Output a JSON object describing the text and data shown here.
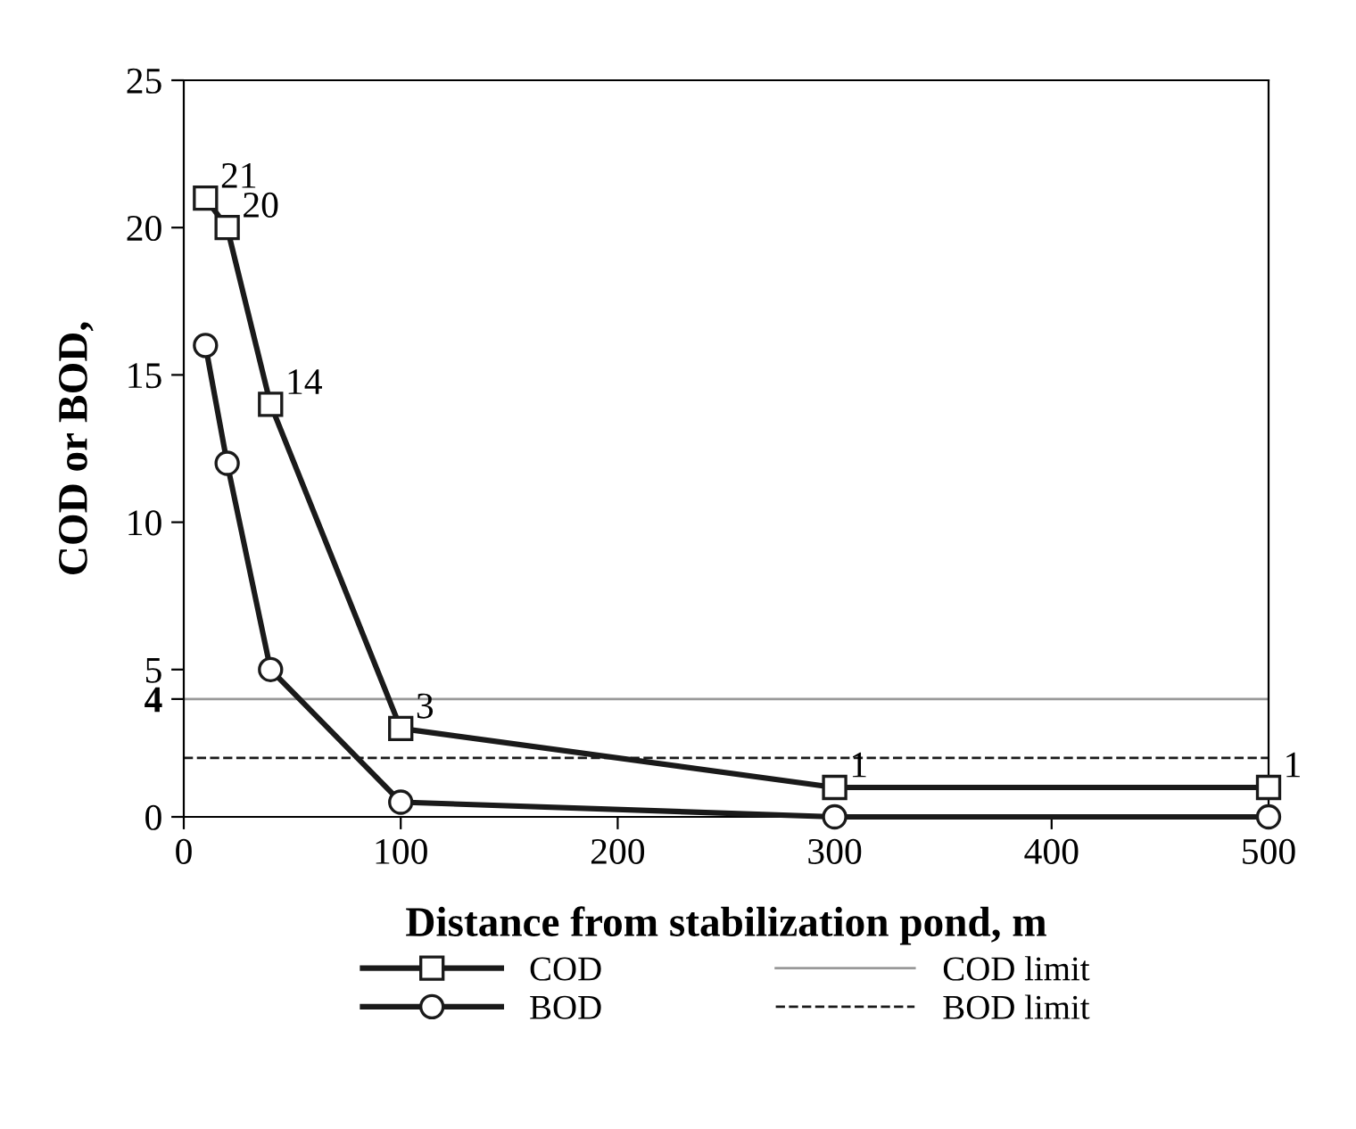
{
  "chart_data": {
    "type": "line",
    "xlabel": "Distance from stabilization pond, m",
    "ylabel": "COD or BOD,",
    "x": [
      10,
      20,
      40,
      100,
      300,
      500
    ],
    "series": [
      {
        "name": "COD",
        "color": "#1a1a1a",
        "marker": "square",
        "values": [
          21,
          20,
          14,
          3,
          1,
          1
        ],
        "value_labels": [
          "21",
          "20",
          "14",
          "3",
          "1",
          "1"
        ]
      },
      {
        "name": "BOD",
        "color": "#1a1a1a",
        "marker": "circle",
        "values": [
          16,
          12,
          5,
          0.5,
          0,
          0
        ]
      }
    ],
    "ref_lines": [
      {
        "axis": "y",
        "value": 4,
        "label": "COD limit",
        "color": "#999999",
        "line_style": "solid"
      },
      {
        "axis": "y",
        "value": 2,
        "label": "BOD limit",
        "color": "#1a1a1a",
        "line_style": "dashed"
      }
    ],
    "xlim": [
      0,
      500
    ],
    "xticks": [
      0,
      100,
      200,
      300,
      400,
      500
    ],
    "ylim": [
      0,
      25
    ],
    "yticks": [
      0,
      {
        "value": 4,
        "label": "4"
      },
      5,
      10,
      15,
      20,
      25
    ],
    "grid": false,
    "legend": "bottom",
    "line_style": "solid"
  }
}
